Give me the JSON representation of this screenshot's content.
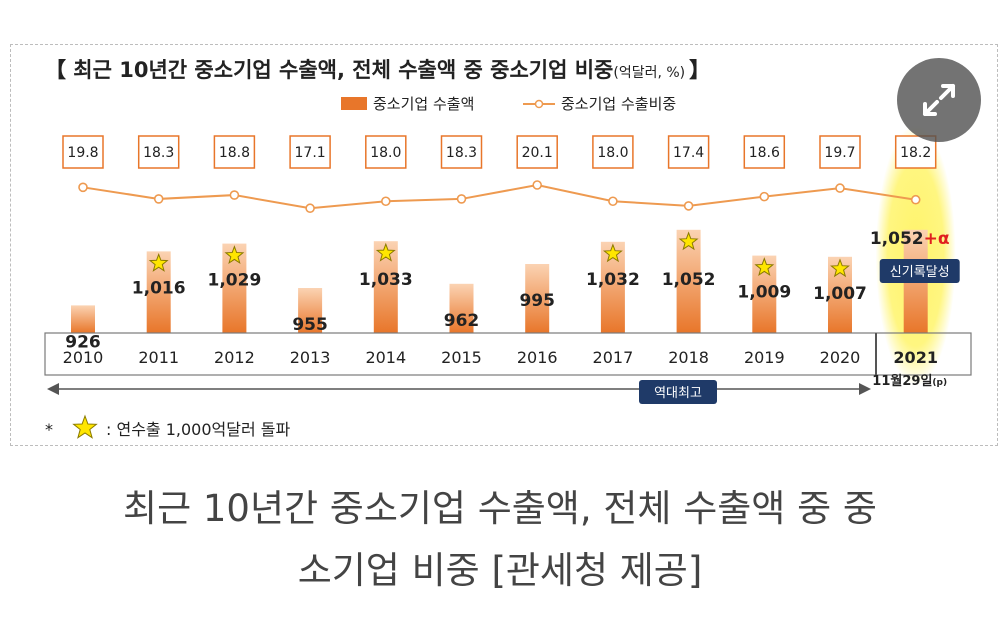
{
  "chart_data": {
    "type": "bar+line",
    "title": "【 최근 10년간 중소기업 수출액, 전체 수출액 중 중소기업 비중",
    "title_unit": "(억달러, %)",
    "title_end": "】",
    "legend": [
      {
        "name": "중소기업 수출액",
        "color": "#ef8c3c",
        "marker": "bar"
      },
      {
        "name": "중소기업 수출비중",
        "color": "#ee9a50",
        "marker": "line"
      }
    ],
    "categories": [
      "2010",
      "2011",
      "2012",
      "2013",
      "2014",
      "2015",
      "2016",
      "2017",
      "2018",
      "2019",
      "2020",
      "2021"
    ],
    "category_sublabel": {
      "index": 11,
      "text": "11월29일",
      "suffix": "(p)"
    },
    "series": [
      {
        "name": "중소기업 수출액",
        "values": [
          926,
          1016,
          1029,
          955,
          1033,
          962,
          995,
          1032,
          1052,
          1009,
          1007,
          1052
        ],
        "labels": [
          "926",
          "1,016",
          "1,029",
          "955",
          "1,033",
          "962",
          "995",
          "1,032",
          "1,052",
          "1,009",
          "1,007",
          "1,052"
        ]
      },
      {
        "name": "중소기업 수출비중",
        "values": [
          19.8,
          18.3,
          18.8,
          17.1,
          18.0,
          18.3,
          20.1,
          18.0,
          17.4,
          18.6,
          19.7,
          18.2
        ],
        "labels": [
          "19.8",
          "18.3",
          "18.8",
          "17.1",
          "18.0",
          "18.3",
          "20.1",
          "18.0",
          "17.4",
          "18.6",
          "19.7",
          "18.2"
        ]
      }
    ],
    "star_years": [
      1,
      2,
      4,
      7,
      8,
      9,
      10
    ],
    "last_value_suffix": "+α",
    "record_badge": "신기록달성",
    "range_arrow_label": "역대최고",
    "footnote_prefix": "*",
    "footnote_text": ": 연수출 1,000억달러 돌파",
    "colors": {
      "bar_dark": "#e8762a",
      "bar_light": "#fbd3b3",
      "line": "#ee9a50",
      "badge": "#1f3a68",
      "highlight": "#fff46a",
      "alpha": "#e02020"
    }
  },
  "caption": {
    "line1": "최근 10년간 중소기업 수출액, 전체 수출액 중 중",
    "line2": "소기업 비중 [관세청 제공]"
  },
  "expand_icon": "expand-arrows-icon"
}
